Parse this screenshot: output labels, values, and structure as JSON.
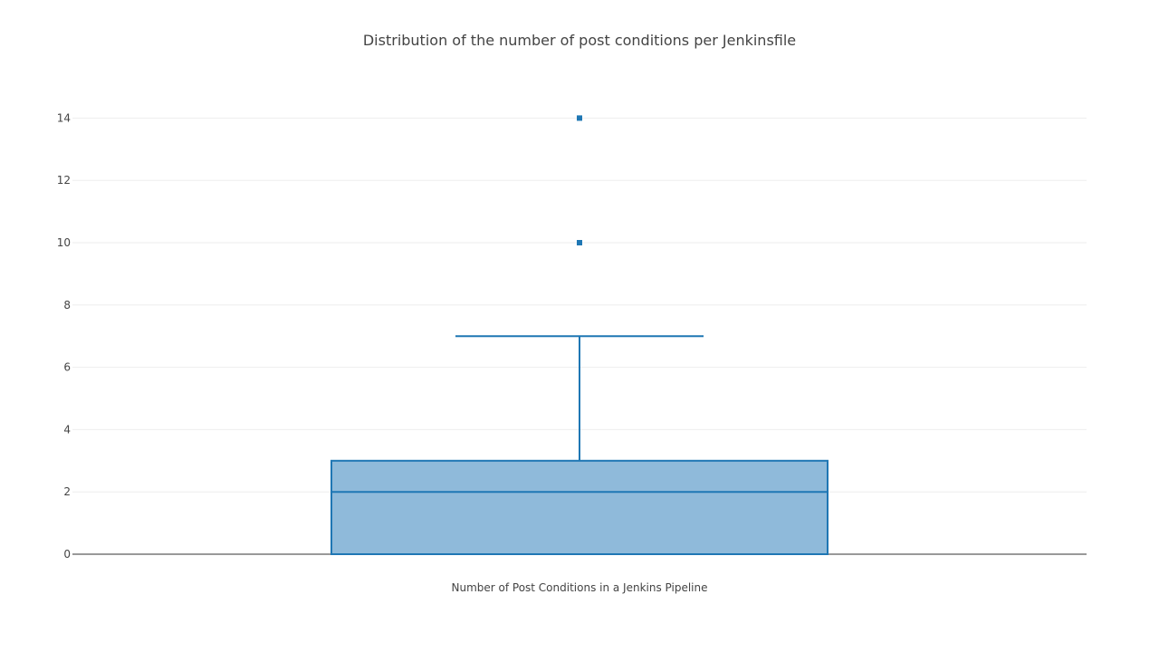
{
  "chart_data": {
    "type": "box",
    "title": "Distribution of the number of post conditions per Jenkinsfile",
    "xlabel": "",
    "ylabel": "",
    "categories": [
      "Number of Post Conditions in a Jenkins Pipeline"
    ],
    "series": [
      {
        "min": 0,
        "q1": 0,
        "median": 2,
        "q3": 3,
        "upper_whisker": 7,
        "outliers": [
          10,
          14
        ]
      }
    ],
    "ylim": [
      0,
      15
    ],
    "yticks": [
      0,
      2,
      4,
      6,
      8,
      10,
      12,
      14
    ],
    "grid": true,
    "colors": {
      "line": "#1f77b4",
      "fill": "#8fbada",
      "grid": "#eeeeee",
      "zeroline": "#999999"
    }
  }
}
